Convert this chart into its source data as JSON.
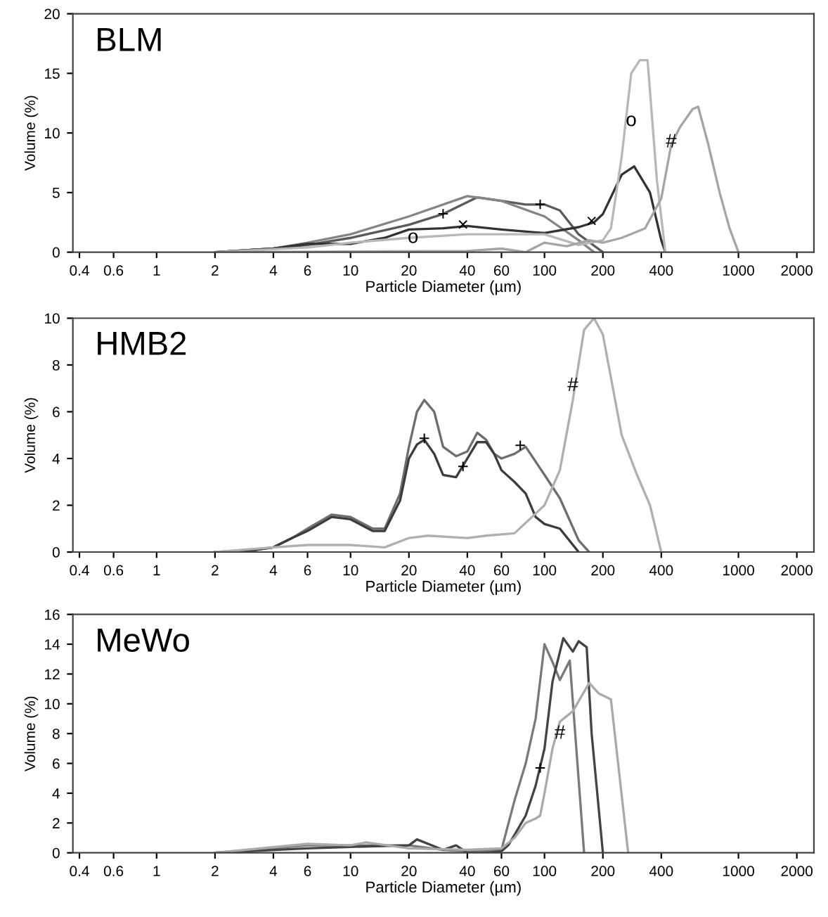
{
  "chart_data": [
    {
      "type": "line",
      "title": "BLM",
      "xlabel": "Particle Diameter (µm)",
      "ylabel": "Volume (%)",
      "log": "x",
      "grid": false,
      "legend": false,
      "marker": "none",
      "line_style": "solid",
      "xlim": [
        0.37,
        2450
      ],
      "xticks": [
        0.4,
        0.6,
        1,
        2,
        4,
        6,
        10,
        20,
        40,
        60,
        100,
        200,
        400,
        1000,
        2000
      ],
      "ylim": [
        0,
        20
      ],
      "yticks": [
        0,
        5,
        10,
        15,
        20
      ],
      "series": [
        {
          "color": "#5a5a5a",
          "x": [
            2,
            4,
            6,
            10,
            20,
            30,
            45,
            60,
            80,
            100,
            120,
            150,
            200
          ],
          "values": [
            0,
            0.3,
            0.6,
            1.2,
            2.3,
            3.2,
            4.6,
            4.3,
            4.0,
            4.0,
            3.5,
            1.5,
            0
          ]
        },
        {
          "color": "#858585",
          "x": [
            2,
            4,
            6,
            10,
            20,
            40,
            60,
            100,
            150,
            180
          ],
          "values": [
            0,
            0.3,
            0.8,
            1.5,
            3.0,
            4.7,
            4.3,
            3.0,
            1.0,
            0
          ]
        },
        {
          "color": "#333333",
          "x": [
            2,
            4,
            6,
            10,
            15,
            20,
            30,
            40,
            60,
            100,
            150,
            180,
            200,
            250,
            290,
            350,
            400,
            420
          ],
          "values": [
            0,
            0.3,
            0.7,
            0.7,
            1.2,
            1.9,
            2.0,
            2.2,
            1.9,
            1.6,
            2.1,
            2.5,
            3.2,
            6.5,
            7.2,
            5.0,
            1.0,
            0
          ]
        },
        {
          "color": "#b8b8b8",
          "x": [
            2,
            6,
            10,
            20,
            40,
            100,
            150,
            200,
            220,
            250,
            280,
            310,
            340,
            380,
            420
          ],
          "values": [
            0,
            0.4,
            0.8,
            1.2,
            1.5,
            1.5,
            0.6,
            1.0,
            2.0,
            8,
            15,
            16.1,
            16.1,
            6,
            0
          ]
        },
        {
          "color": "#a5a5a5",
          "x": [
            2,
            40,
            60,
            80,
            100,
            130,
            170,
            200,
            250,
            330,
            400,
            450,
            500,
            580,
            620,
            700,
            800,
            900,
            1000
          ],
          "values": [
            0,
            0.1,
            0.3,
            0,
            0.8,
            0.5,
            1.0,
            0.8,
            1.2,
            2.0,
            4.5,
            9,
            10.5,
            12,
            12.2,
            9,
            5,
            2,
            0
          ]
        }
      ],
      "annotations": [
        {
          "text": "+",
          "x": 30,
          "y": 3.1
        },
        {
          "text": "+",
          "x": 95,
          "y": 3.9
        },
        {
          "text": "×",
          "x": 38,
          "y": 2.2
        },
        {
          "text": "×",
          "x": 175,
          "y": 2.5
        },
        {
          "text": "o",
          "x": 21,
          "y": 1.2
        },
        {
          "text": "o",
          "x": 280,
          "y": 11
        },
        {
          "text": "#",
          "x": 450,
          "y": 9.2
        }
      ]
    },
    {
      "type": "line",
      "title": "HMB2",
      "xlabel": "Particle Diameter (µm)",
      "ylabel": "Volume (%)",
      "log": "x",
      "grid": false,
      "legend": false,
      "marker": "none",
      "line_style": "solid",
      "xlim": [
        0.37,
        2450
      ],
      "xticks": [
        0.4,
        0.6,
        1,
        2,
        4,
        6,
        10,
        20,
        40,
        60,
        100,
        200,
        400,
        1000,
        2000
      ],
      "ylim": [
        0,
        10
      ],
      "yticks": [
        0,
        2,
        4,
        6,
        8,
        10
      ],
      "series": [
        {
          "color": "#6e6e6e",
          "x": [
            2,
            3,
            4,
            5,
            6,
            8,
            10,
            13,
            15,
            18,
            20,
            22,
            24,
            27,
            30,
            35,
            40,
            45,
            50,
            55,
            60,
            70,
            80,
            100,
            120,
            150,
            170
          ],
          "values": [
            0,
            0.05,
            0.2,
            0.6,
            1.0,
            1.6,
            1.5,
            1.0,
            1.0,
            2.5,
            4.5,
            6.0,
            6.5,
            6.0,
            4.5,
            4.1,
            4.3,
            5.1,
            4.8,
            4.2,
            4.0,
            4.2,
            4.5,
            3.3,
            2.3,
            0.5,
            0
          ]
        },
        {
          "color": "#3c3c3c",
          "x": [
            2,
            3,
            4,
            5,
            6,
            8,
            10,
            13,
            15,
            18,
            20,
            22,
            24,
            27,
            30,
            35,
            40,
            45,
            50,
            55,
            60,
            70,
            80,
            90,
            100,
            120,
            150
          ],
          "values": [
            0,
            0.05,
            0.2,
            0.6,
            0.9,
            1.5,
            1.4,
            0.9,
            0.9,
            2.2,
            4.0,
            4.6,
            4.8,
            4.2,
            3.3,
            3.2,
            4.0,
            4.7,
            4.7,
            4.2,
            3.5,
            3.0,
            2.5,
            1.5,
            1.2,
            1.0,
            0
          ]
        },
        {
          "color": "#b0b0b0",
          "x": [
            2,
            4,
            6,
            10,
            15,
            20,
            25,
            40,
            50,
            70,
            100,
            120,
            140,
            160,
            180,
            200,
            250,
            300,
            350,
            400
          ],
          "values": [
            0,
            0.2,
            0.3,
            0.3,
            0.2,
            0.6,
            0.7,
            0.6,
            0.7,
            0.8,
            2.0,
            3.5,
            6.5,
            9.5,
            10.0,
            9.3,
            5.0,
            3.3,
            2.0,
            0
          ]
        }
      ],
      "annotations": [
        {
          "text": "+",
          "x": 24,
          "y": 4.8
        },
        {
          "text": "+",
          "x": 38,
          "y": 3.6
        },
        {
          "text": "+",
          "x": 75,
          "y": 4.5
        },
        {
          "text": "#",
          "x": 140,
          "y": 7.1
        }
      ]
    },
    {
      "type": "line",
      "title": "MeWo",
      "xlabel": "Particle Diameter (µm)",
      "ylabel": "Volume (%)",
      "log": "x",
      "grid": false,
      "legend": false,
      "marker": "none",
      "line_style": "solid",
      "xlim": [
        0.37,
        2450
      ],
      "xticks": [
        0.4,
        0.6,
        1,
        2,
        4,
        6,
        10,
        20,
        40,
        60,
        100,
        200,
        400,
        1000,
        2000
      ],
      "ylim": [
        0,
        16
      ],
      "yticks": [
        0,
        2,
        4,
        6,
        8,
        10,
        12,
        14,
        16
      ],
      "series": [
        {
          "color": "#7a7a7a",
          "x": [
            2,
            6,
            10,
            20,
            30,
            40,
            60,
            70,
            80,
            90,
            100,
            110,
            120,
            135,
            160
          ],
          "values": [
            0,
            0.5,
            0.5,
            0.5,
            0.2,
            0.1,
            0.2,
            3.5,
            6,
            9,
            14,
            12.8,
            11.6,
            12.9,
            0
          ]
        },
        {
          "color": "#444444",
          "x": [
            2,
            6,
            10,
            20,
            22,
            30,
            35,
            40,
            50,
            60,
            65,
            70,
            80,
            90,
            100,
            110,
            125,
            140,
            150,
            165,
            175,
            200
          ],
          "values": [
            0,
            0.3,
            0.4,
            0.5,
            0.9,
            0.2,
            0.5,
            0,
            0,
            0.1,
            0.5,
            1.2,
            2.5,
            4.5,
            7,
            11.5,
            14.4,
            13.5,
            14.2,
            13.8,
            8,
            0
          ]
        },
        {
          "color": "#aaaaaa",
          "x": [
            2,
            6,
            10,
            12,
            20,
            40,
            60,
            70,
            80,
            90,
            95,
            100,
            110,
            120,
            140,
            170,
            190,
            220,
            270
          ],
          "values": [
            0,
            0.6,
            0.5,
            0.7,
            0.3,
            0.2,
            0.3,
            1,
            2,
            2.3,
            2.5,
            4,
            7,
            8.8,
            9.5,
            11.4,
            10.7,
            10.3,
            0
          ]
        }
      ],
      "annotations": [
        {
          "text": "+",
          "x": 95,
          "y": 5.6
        },
        {
          "text": "#",
          "x": 120,
          "y": 8
        }
      ]
    }
  ]
}
